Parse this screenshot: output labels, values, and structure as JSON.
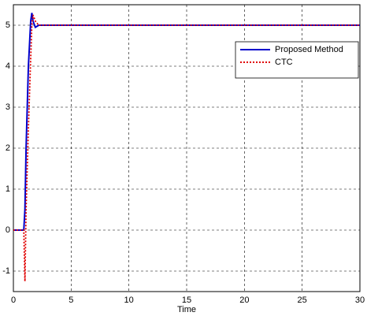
{
  "chart_data": {
    "type": "line",
    "xlabel": "Time",
    "x": [
      0,
      0.9,
      1.0,
      1.1,
      1.3,
      1.5,
      1.6,
      1.7,
      1.9,
      2.2,
      3,
      30
    ],
    "series": [
      {
        "name": "Proposed Method",
        "color": "#0000cc",
        "style": "solid",
        "values": [
          0,
          0,
          0.5,
          2,
          4,
          5.1,
          5.3,
          5.1,
          4.95,
          5,
          5,
          5
        ]
      },
      {
        "name": "CTC",
        "color": "#e00000",
        "style": "dotted",
        "values": [
          0,
          0,
          -1.25,
          0.5,
          2.5,
          4.2,
          5,
          5.25,
          5.1,
          5,
          5,
          5
        ]
      }
    ],
    "xlim": [
      0,
      30
    ],
    "xticks": [
      0,
      5,
      10,
      15,
      20,
      25,
      30
    ],
    "ylim": [
      -1.5,
      5.5
    ],
    "yticks": [
      -1,
      0,
      1,
      2,
      3,
      4,
      5
    ],
    "grid": true,
    "legend": "upper right"
  }
}
